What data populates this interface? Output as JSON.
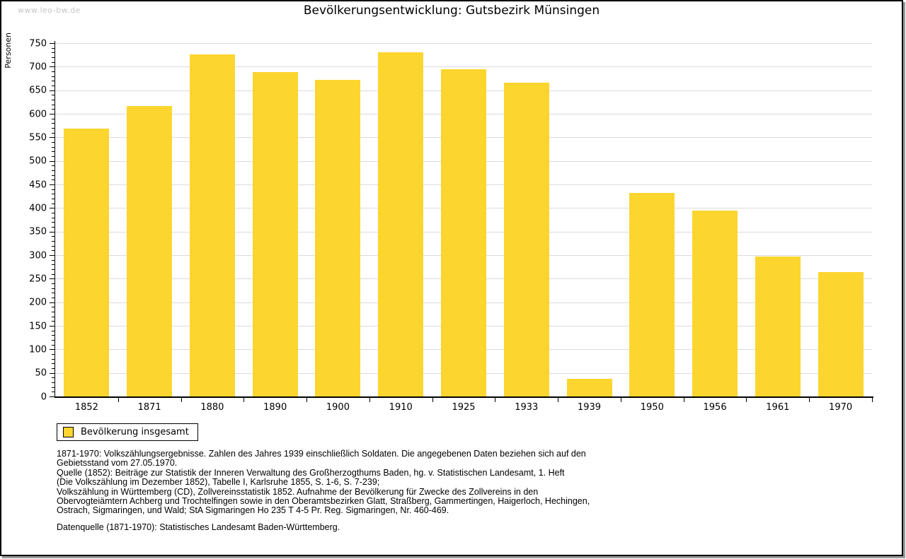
{
  "page": {
    "watermark": "www.leo-bw.de",
    "title": "Bevölkerungsentwicklung: Gutsbezirk Münsingen"
  },
  "chart_data": {
    "type": "bar",
    "title": "Bevölkerungsentwicklung: Gutsbezirk Münsingen",
    "xlabel": "",
    "ylabel": "Personen",
    "categories": [
      "1852",
      "1871",
      "1880",
      "1890",
      "1900",
      "1910",
      "1925",
      "1933",
      "1939",
      "1950",
      "1956",
      "1961",
      "1970"
    ],
    "series": [
      {
        "name": "Bevölkerung insgesamt",
        "values": [
          568,
          617,
          726,
          688,
          672,
          730,
          694,
          666,
          38,
          432,
          395,
          297,
          264
        ]
      }
    ],
    "ylim": [
      0,
      750
    ],
    "ytick_step": 50,
    "ytick_minor_step": 10,
    "grid": true,
    "legend_position": "below-left",
    "bar_color": "#FCD52F"
  },
  "legend": {
    "swatch_color": "#FCD52F",
    "label": "Bevölkerung insgesamt"
  },
  "notes": {
    "block1": [
      "1871-1970: Volkszählungsergebnisse. Zahlen des Jahres 1939 einschließlich Soldaten. Die angegebenen Daten beziehen sich auf den",
      "Gebietsstand vom 27.05.1970.",
      "Quelle (1852): Beiträge zur Statistik der Inneren Verwaltung des Großherzogthums Baden, hg. v. Statistischen Landesamt, 1. Heft",
      "(Die Volkszählung im Dezember 1852), Tabelle I, Karlsruhe 1855, S. 1-6, S. 7-239;",
      "Volkszählung in Württemberg (CD), Zollvereinsstatistik 1852. Aufnahme der Bevölkerung für Zwecke des Zollvereins in den",
      "Obervogteiämtern Achberg und Trochtelfingen sowie in den Oberamtsbezirken Glatt, Straßberg, Gammertingen, Haigerloch, Hechingen,",
      "Ostrach, Sigmaringen, und Wald; StA Sigmaringen Ho 235 T 4-5 Pr. Reg. Sigmaringen, Nr. 460-469."
    ],
    "block2": [
      "Datenquelle (1871-1970): Statistisches Landesamt Baden-Württemberg."
    ]
  },
  "colors": {
    "bar": "#FCD52F",
    "grid": "#DBDBDB",
    "axis": "#000000",
    "watermark": "#C6C6C6",
    "frame_shadow": "#9B9B9B"
  }
}
